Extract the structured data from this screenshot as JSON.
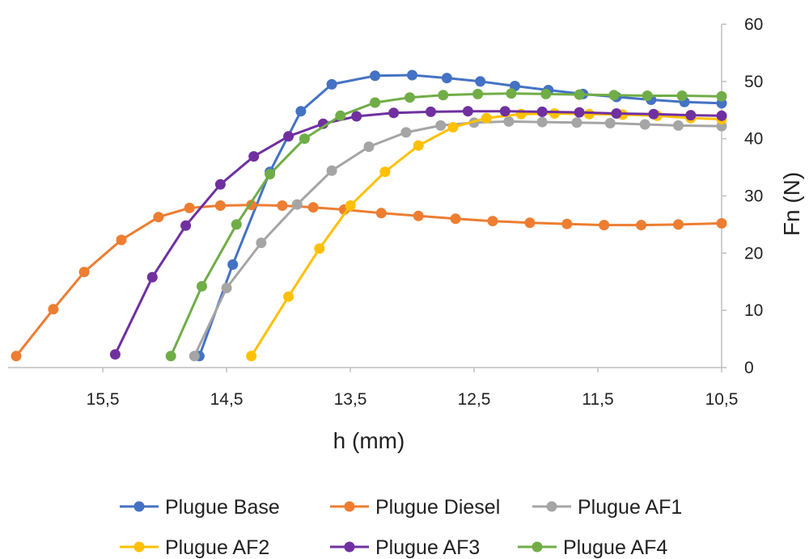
{
  "chart_data": {
    "type": "line",
    "xlabel": "h (mm)",
    "ylabel": "Fn (N)",
    "x_reversed": true,
    "xlim": [
      10.5,
      16.2
    ],
    "ylim": [
      0,
      60
    ],
    "x_ticks": [
      15.5,
      14.5,
      13.5,
      12.5,
      11.5,
      10.5
    ],
    "x_tick_labels": [
      "15,5",
      "14,5",
      "13,5",
      "12,5",
      "11,5",
      "10,5"
    ],
    "y_ticks": [
      0,
      10,
      20,
      30,
      40,
      50,
      60
    ],
    "y_tick_labels": [
      "0",
      "10",
      "20",
      "30",
      "40",
      "50",
      "60"
    ],
    "y_axis_position": "right",
    "grid": false,
    "legend_position": "bottom",
    "series": [
      {
        "name": "Plugue Base",
        "color": "#4472C4",
        "x": [
          14.72,
          14.45,
          14.15,
          13.9,
          13.65,
          13.3,
          13.0,
          12.72,
          12.45,
          12.17,
          11.9,
          11.62,
          11.35,
          11.07,
          10.8,
          10.5
        ],
        "y": [
          2,
          18,
          34.2,
          44.8,
          49.5,
          51,
          51.1,
          50.6,
          50,
          49.2,
          48.5,
          47.8,
          47.3,
          46.8,
          46.4,
          46.2
        ]
      },
      {
        "name": "Plugue Diesel",
        "color": "#ED7D31",
        "x": [
          16.2,
          15.9,
          15.65,
          15.35,
          15.05,
          14.8,
          14.55,
          14.3,
          14.05,
          13.8,
          13.55,
          13.25,
          12.95,
          12.65,
          12.35,
          12.05,
          11.75,
          11.45,
          11.15,
          10.85,
          10.5
        ],
        "y": [
          2,
          10.2,
          16.7,
          22.3,
          26.3,
          27.9,
          28.3,
          28.4,
          28.3,
          28,
          27.6,
          27.0,
          26.5,
          26.0,
          25.6,
          25.3,
          25.1,
          24.9,
          24.9,
          25.0,
          25.2
        ]
      },
      {
        "name": "Plugue AF1",
        "color": "#A5A5A5",
        "x": [
          14.76,
          14.5,
          14.22,
          13.93,
          13.65,
          13.35,
          13.05,
          12.77,
          12.5,
          12.22,
          11.95,
          11.67,
          11.4,
          11.12,
          10.85,
          10.5
        ],
        "y": [
          2,
          13.9,
          21.8,
          28.5,
          34.4,
          38.6,
          41.1,
          42.3,
          42.8,
          43.0,
          42.9,
          42.8,
          42.7,
          42.5,
          42.3,
          42.2
        ]
      },
      {
        "name": "Plugue AF2",
        "color": "#FFC000",
        "x": [
          14.3,
          14.0,
          13.75,
          13.5,
          13.22,
          12.95,
          12.67,
          12.4,
          12.12,
          11.85,
          11.57,
          11.3,
          11.02,
          10.75,
          10.5
        ],
        "y": [
          2,
          12.4,
          20.8,
          28.3,
          34.2,
          38.8,
          42.0,
          43.6,
          44.3,
          44.4,
          44.3,
          44.2,
          44.0,
          43.6,
          43.4
        ]
      },
      {
        "name": "Plugue AF3",
        "color": "#7030A0",
        "x": [
          15.4,
          15.1,
          14.83,
          14.55,
          14.28,
          14.0,
          13.72,
          13.45,
          13.15,
          12.85,
          12.55,
          12.25,
          11.95,
          11.65,
          11.35,
          11.05,
          10.75,
          10.5
        ],
        "y": [
          2.3,
          15.8,
          24.8,
          32.0,
          36.9,
          40.4,
          42.6,
          43.9,
          44.5,
          44.7,
          44.8,
          44.8,
          44.7,
          44.6,
          44.4,
          44.3,
          44.1,
          44.0
        ]
      },
      {
        "name": "Plugue AF4",
        "color": "#70AD47",
        "x": [
          14.95,
          14.7,
          14.42,
          14.15,
          13.87,
          13.58,
          13.3,
          13.02,
          12.75,
          12.47,
          12.2,
          11.92,
          11.65,
          11.37,
          11.1,
          10.82,
          10.5
        ],
        "y": [
          2,
          14.2,
          25.0,
          33.8,
          40.0,
          44.0,
          46.3,
          47.2,
          47.6,
          47.8,
          47.9,
          47.8,
          47.7,
          47.6,
          47.5,
          47.5,
          47.4
        ]
      }
    ]
  }
}
